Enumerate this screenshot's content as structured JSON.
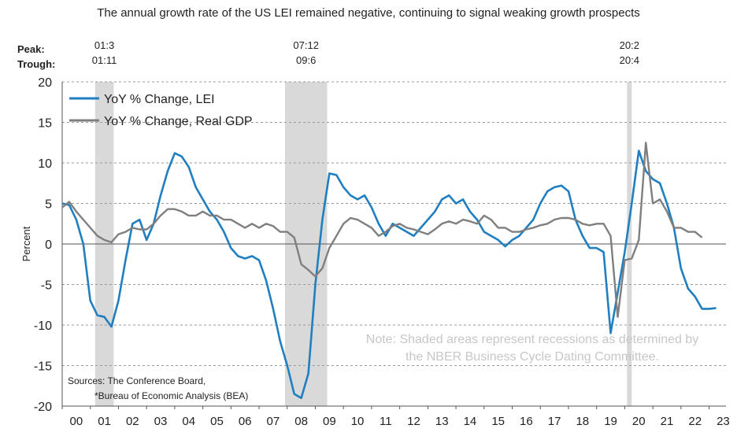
{
  "chart_data": {
    "type": "line",
    "title": "The annual growth rate of the US LEI remained negative, continuing to signal weaking growth prospects",
    "ylabel": "Percent",
    "xlabel": "",
    "ylim": [
      -20,
      20
    ],
    "yticks": [
      20,
      15,
      10,
      5,
      0,
      -5,
      -10,
      -15,
      -20
    ],
    "xlim": [
      2000,
      2023.6
    ],
    "x_tick_labels": [
      "00",
      "01",
      "02",
      "03",
      "04",
      "05",
      "06",
      "07",
      "08",
      "09",
      "10",
      "11",
      "12",
      "13",
      "14",
      "15",
      "16",
      "17",
      "18",
      "19",
      "20",
      "21",
      "22",
      "23"
    ],
    "grid": true,
    "legend_position": "top-left",
    "peak_label": "Peak:",
    "trough_label": "Trough:",
    "recessions": [
      {
        "peak": "01:3",
        "trough": "01:11",
        "start": 2001.17,
        "end": 2001.83
      },
      {
        "peak": "07:12",
        "trough": "09:6",
        "start": 2007.92,
        "end": 2009.42
      },
      {
        "peak": "20:2",
        "trough": "20:4",
        "start": 2020.08,
        "end": 2020.25
      }
    ],
    "series": [
      {
        "name": "YoY % Change, LEI",
        "color": "#1f7fc0",
        "x": [
          2000.0,
          2000.25,
          2000.5,
          2000.75,
          2001.0,
          2001.25,
          2001.5,
          2001.75,
          2002.0,
          2002.25,
          2002.5,
          2002.75,
          2003.0,
          2003.25,
          2003.5,
          2003.75,
          2004.0,
          2004.25,
          2004.5,
          2004.75,
          2005.0,
          2005.25,
          2005.5,
          2005.75,
          2006.0,
          2006.25,
          2006.5,
          2006.75,
          2007.0,
          2007.25,
          2007.5,
          2007.75,
          2008.0,
          2008.25,
          2008.5,
          2008.75,
          2009.0,
          2009.25,
          2009.5,
          2009.75,
          2010.0,
          2010.25,
          2010.5,
          2010.75,
          2011.0,
          2011.25,
          2011.5,
          2011.75,
          2012.0,
          2012.25,
          2012.5,
          2012.75,
          2013.0,
          2013.25,
          2013.5,
          2013.75,
          2014.0,
          2014.25,
          2014.5,
          2014.75,
          2015.0,
          2015.25,
          2015.5,
          2015.75,
          2016.0,
          2016.25,
          2016.5,
          2016.75,
          2017.0,
          2017.25,
          2017.5,
          2017.75,
          2018.0,
          2018.25,
          2018.5,
          2018.75,
          2019.0,
          2019.25,
          2019.5,
          2019.75,
          2020.0,
          2020.25,
          2020.5,
          2020.75,
          2021.0,
          2021.25,
          2021.5,
          2021.75,
          2022.0,
          2022.25,
          2022.5,
          2022.75,
          2023.0,
          2023.25
        ],
        "values": [
          5.0,
          4.8,
          3.0,
          0.0,
          -7.0,
          -8.8,
          -9.0,
          -10.2,
          -7.0,
          -2.0,
          2.5,
          3.0,
          0.5,
          2.5,
          6.0,
          9.0,
          11.2,
          10.8,
          9.5,
          7.0,
          5.5,
          4.0,
          3.0,
          1.5,
          -0.5,
          -1.5,
          -1.8,
          -1.5,
          -2.0,
          -4.5,
          -8.0,
          -12.0,
          -15.0,
          -18.5,
          -19.0,
          -16.0,
          -5.0,
          3.0,
          8.7,
          8.5,
          7.0,
          6.0,
          5.5,
          6.0,
          4.5,
          2.5,
          1.0,
          2.5,
          2.0,
          1.5,
          1.0,
          2.0,
          3.0,
          4.0,
          5.5,
          6.0,
          5.0,
          5.5,
          4.0,
          3.0,
          1.5,
          1.0,
          0.5,
          -0.3,
          0.5,
          1.0,
          2.0,
          3.0,
          5.0,
          6.5,
          7.0,
          7.2,
          6.5,
          3.0,
          1.0,
          -0.5,
          -0.5,
          -1.0,
          -11.0,
          -6.0,
          -1.0,
          5.0,
          11.5,
          9.0,
          8.0,
          7.5,
          5.0,
          2.0,
          -3.0,
          -5.5,
          -6.5,
          -8.0,
          -8.0,
          -7.9
        ]
      },
      {
        "name": "YoY % Change, Real GDP",
        "color": "#7f7f7f",
        "x": [
          2000.0,
          2000.25,
          2000.5,
          2000.75,
          2001.0,
          2001.25,
          2001.5,
          2001.75,
          2002.0,
          2002.25,
          2002.5,
          2002.75,
          2003.0,
          2003.25,
          2003.5,
          2003.75,
          2004.0,
          2004.25,
          2004.5,
          2004.75,
          2005.0,
          2005.25,
          2005.5,
          2005.75,
          2006.0,
          2006.25,
          2006.5,
          2006.75,
          2007.0,
          2007.25,
          2007.5,
          2007.75,
          2008.0,
          2008.25,
          2008.5,
          2008.75,
          2009.0,
          2009.25,
          2009.5,
          2009.75,
          2010.0,
          2010.25,
          2010.5,
          2010.75,
          2011.0,
          2011.25,
          2011.5,
          2011.75,
          2012.0,
          2012.25,
          2012.5,
          2012.75,
          2013.0,
          2013.25,
          2013.5,
          2013.75,
          2014.0,
          2014.25,
          2014.5,
          2014.75,
          2015.0,
          2015.25,
          2015.5,
          2015.75,
          2016.0,
          2016.25,
          2016.5,
          2016.75,
          2017.0,
          2017.25,
          2017.5,
          2017.75,
          2018.0,
          2018.25,
          2018.5,
          2018.75,
          2019.0,
          2019.25,
          2019.5,
          2019.75,
          2020.0,
          2020.25,
          2020.5,
          2020.75,
          2021.0,
          2021.25,
          2021.5,
          2021.75,
          2022.0,
          2022.25,
          2022.5,
          2022.75
        ],
        "values": [
          4.5,
          5.2,
          4.0,
          3.0,
          2.0,
          1.0,
          0.5,
          0.2,
          1.2,
          1.5,
          2.0,
          1.8,
          1.8,
          2.5,
          3.5,
          4.3,
          4.3,
          4.0,
          3.5,
          3.5,
          4.0,
          3.5,
          3.5,
          3.0,
          3.0,
          2.5,
          2.0,
          2.5,
          2.0,
          2.5,
          2.2,
          1.5,
          1.5,
          0.8,
          -2.5,
          -3.2,
          -4.0,
          -3.0,
          -0.5,
          1.0,
          2.5,
          3.2,
          3.0,
          2.5,
          2.0,
          1.0,
          1.5,
          2.2,
          2.5,
          2.0,
          1.8,
          1.5,
          1.2,
          1.8,
          2.5,
          2.8,
          2.5,
          3.0,
          2.8,
          2.5,
          3.5,
          3.0,
          2.0,
          2.0,
          1.5,
          1.5,
          1.8,
          2.0,
          2.3,
          2.5,
          3.0,
          3.2,
          3.2,
          3.0,
          2.5,
          2.3,
          2.5,
          2.5,
          1.0,
          -9.0,
          -2.0,
          -1.8,
          0.5,
          12.5,
          5.0,
          5.5,
          4.0,
          2.0,
          2.0,
          1.5,
          1.5,
          0.8
        ]
      }
    ],
    "annotations": [
      "Note: Shaded areas represent recessions as determined by",
      "the NBER Business Cycle Dating Committee."
    ],
    "sources": [
      "Sources: The Conference Board,",
      "*Bureau of Economic Analysis (BEA)"
    ]
  }
}
